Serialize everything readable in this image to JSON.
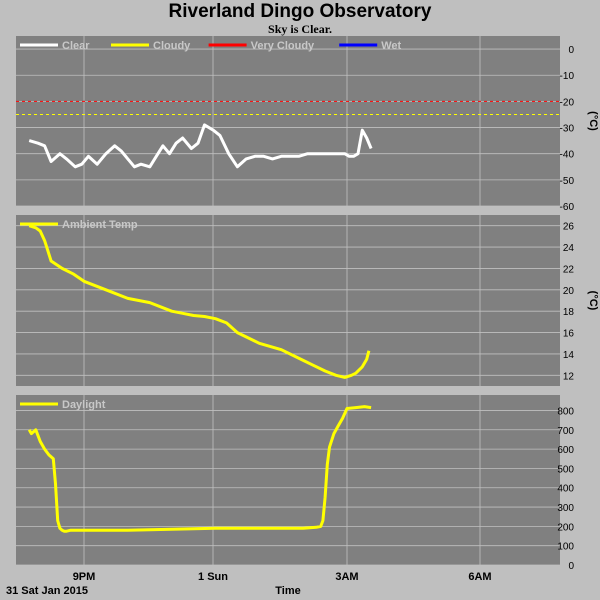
{
  "title": "Riverland Dingo Observatory",
  "subtitle": "Sky is Clear.",
  "footer": {
    "date": "31 Sat Jan 2015",
    "xlabel": "Time"
  },
  "colors": {
    "panel_bg": "#808080",
    "grid": "#c0c0c0",
    "clear": "#ffffff",
    "cloudy": "#ffff00",
    "very_cloudy": "#ff0000",
    "wet": "#0000ff"
  },
  "chart_data": [
    {
      "type": "line",
      "name": "sky-temperature",
      "unit": "(°C)",
      "ylim": [
        -60,
        5
      ],
      "yticks": [
        0,
        -10,
        -20,
        -30,
        -40,
        -50,
        -60
      ],
      "xlim": [
        19.75,
        27.6
      ],
      "grid": true,
      "legend": [
        "Clear",
        "Cloudy",
        "Very Cloudy",
        "Wet"
      ],
      "thresholds": [
        {
          "name": "Very Cloudy",
          "value": -20
        },
        {
          "name": "Cloudy",
          "value": -25
        }
      ],
      "series": [
        {
          "name": "Clear",
          "x": [
            19.75,
            19.95,
            20.1,
            20.25,
            20.45,
            20.6,
            20.8,
            20.95,
            21.1,
            21.3,
            21.5,
            21.7,
            21.85,
            22.0,
            22.15,
            22.3,
            22.5,
            22.65,
            22.8,
            22.95,
            23.1,
            23.25,
            23.45,
            23.6,
            23.75,
            23.95,
            24.1,
            24.3,
            24.5,
            24.7,
            24.9,
            25.1,
            25.3,
            25.5,
            25.7,
            25.9,
            26.1,
            26.3,
            26.5,
            26.7,
            26.85,
            26.95,
            27.05,
            27.15,
            27.25,
            27.35,
            27.45,
            27.55
          ],
          "y": [
            -35,
            -36,
            -37,
            -43,
            -40,
            -42,
            -45,
            -44,
            -41,
            -44,
            -40,
            -37,
            -39,
            -42,
            -45,
            -44,
            -45,
            -41,
            -37,
            -40,
            -36,
            -34,
            -38,
            -36,
            -29,
            -31,
            -33,
            -40,
            -45,
            -42,
            -41,
            -41,
            -42,
            -41,
            -41,
            -41,
            -40,
            -40,
            -40,
            -40,
            -40,
            -40,
            -41,
            -41,
            -40,
            -31,
            -34,
            -38
          ]
        }
      ]
    },
    {
      "type": "line",
      "name": "ambient-temperature",
      "unit": "(°C)",
      "ylim": [
        11,
        27
      ],
      "yticks": [
        12,
        14,
        16,
        18,
        20,
        22,
        24,
        26
      ],
      "xlim": [
        19.75,
        27.6
      ],
      "grid": true,
      "legend": [
        "Ambient Temp"
      ],
      "series": [
        {
          "name": "Ambient Temp",
          "x": [
            19.75,
            19.9,
            20.0,
            20.1,
            20.15,
            20.25,
            20.5,
            20.75,
            21.0,
            21.5,
            22.0,
            22.5,
            23.0,
            23.25,
            23.5,
            23.75,
            24.0,
            24.25,
            24.5,
            25.0,
            25.5,
            26.0,
            26.25,
            26.5,
            26.75,
            26.95,
            27.1,
            27.2,
            27.35,
            27.45,
            27.5
          ],
          "y": [
            26,
            25.8,
            25.5,
            24.6,
            24.0,
            22.7,
            22.0,
            21.5,
            20.8,
            20.0,
            19.2,
            18.8,
            18.0,
            17.8,
            17.6,
            17.5,
            17.3,
            16.9,
            16.0,
            15.0,
            14.4,
            13.4,
            12.9,
            12.4,
            12.0,
            11.8,
            12.0,
            12.2,
            12.8,
            13.5,
            14.3
          ]
        }
      ]
    },
    {
      "type": "line",
      "name": "daylight",
      "unit": "",
      "ylim": [
        0,
        880
      ],
      "yticks": [
        0,
        100,
        200,
        300,
        400,
        500,
        600,
        700,
        800
      ],
      "xlim": [
        19.75,
        27.6
      ],
      "xticks": [
        {
          "label": "9PM",
          "x": 21
        },
        {
          "label": "1 Sun",
          "x": 24
        },
        {
          "label": "3AM",
          "x": 27
        },
        {
          "label": "6AM",
          "x": 30
        }
      ],
      "grid": true,
      "legend": [
        "Daylight"
      ],
      "series": [
        {
          "name": "Daylight",
          "x": [
            19.75,
            19.8,
            19.9,
            20.0,
            20.1,
            20.2,
            20.3,
            20.35,
            20.4,
            20.45,
            20.5,
            20.55,
            20.6,
            20.7,
            21.0,
            22.0,
            23.0,
            24.0,
            25.0,
            26.0,
            26.3,
            26.4,
            26.45,
            26.5,
            26.55,
            26.6,
            26.7,
            26.8,
            26.9,
            27.0,
            27.2,
            27.4,
            27.55
          ],
          "y": [
            700,
            680,
            700,
            640,
            600,
            570,
            550,
            420,
            230,
            190,
            180,
            175,
            175,
            180,
            180,
            180,
            185,
            190,
            190,
            190,
            195,
            200,
            230,
            350,
            520,
            610,
            680,
            720,
            760,
            810,
            815,
            820,
            815
          ]
        }
      ]
    }
  ]
}
